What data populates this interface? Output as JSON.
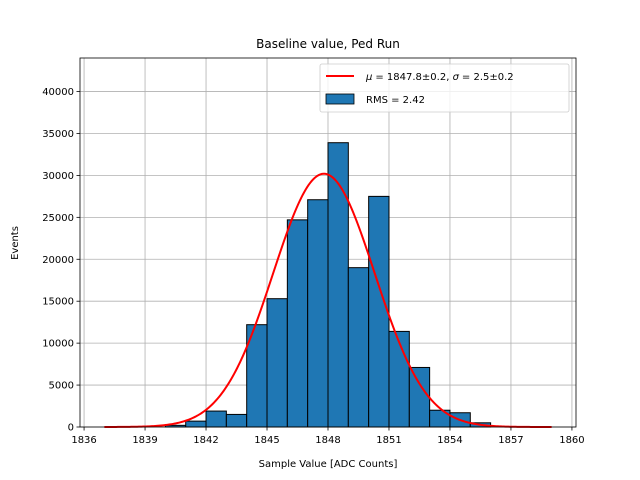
{
  "chart_data": {
    "type": "bar",
    "title": "Baseline value, Ped Run",
    "xlabel": "Sample Value [ADC Counts]",
    "ylabel": "Events",
    "xlim": [
      1835.8,
      1860.2
    ],
    "ylim": [
      0,
      44000
    ],
    "xticks": [
      1836,
      1839,
      1842,
      1845,
      1848,
      1851,
      1854,
      1857,
      1860
    ],
    "yticks": [
      0,
      5000,
      10000,
      15000,
      20000,
      25000,
      30000,
      35000,
      40000
    ],
    "grid": true,
    "legend_position": "upper right",
    "bin_width": 1,
    "histogram": {
      "name": "RMS = 2.42",
      "color": "#1f77b4",
      "edgecolor": "#000000",
      "bin_lefts": [
        1840,
        1841,
        1842,
        1843,
        1844,
        1845,
        1846,
        1847,
        1848,
        1849,
        1850,
        1851,
        1852,
        1853,
        1854,
        1855
      ],
      "counts": [
        200,
        700,
        1900,
        1500,
        12200,
        15300,
        24700,
        27100,
        33900,
        19000,
        27500,
        11400,
        7100,
        2000,
        1700,
        500
      ]
    },
    "fit": {
      "name": "$\\mu = 1847.8\\pm0.2$, $\\sigma = 2.5\\pm0.2$",
      "color": "#ff0000",
      "type": "gaussian",
      "mu": 1847.8,
      "sigma": 2.5,
      "amplitude": 30200,
      "x_range": [
        1837,
        1859
      ]
    },
    "legend": {
      "fit_mu_text": "= 1847.8±0.2, ",
      "fit_sigma_text": "= 2.5±0.2",
      "hist_label": "RMS = 2.42"
    }
  }
}
